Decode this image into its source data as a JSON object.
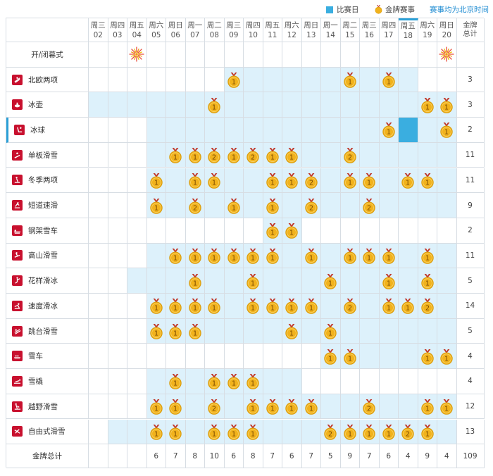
{
  "legend": {
    "competition_day": "比赛日",
    "medal_event": "金牌赛事",
    "note": "赛事均为北京时间"
  },
  "days": [
    {
      "weekday": "周三",
      "date": "02"
    },
    {
      "weekday": "周四",
      "date": "03"
    },
    {
      "weekday": "周五",
      "date": "04"
    },
    {
      "weekday": "周六",
      "date": "05"
    },
    {
      "weekday": "周日",
      "date": "06"
    },
    {
      "weekday": "周一",
      "date": "07"
    },
    {
      "weekday": "周二",
      "date": "08"
    },
    {
      "weekday": "周三",
      "date": "09"
    },
    {
      "weekday": "周四",
      "date": "10"
    },
    {
      "weekday": "周五",
      "date": "11"
    },
    {
      "weekday": "周六",
      "date": "12"
    },
    {
      "weekday": "周日",
      "date": "13"
    },
    {
      "weekday": "周一",
      "date": "14"
    },
    {
      "weekday": "周二",
      "date": "15"
    },
    {
      "weekday": "周三",
      "date": "16"
    },
    {
      "weekday": "周四",
      "date": "17"
    },
    {
      "weekday": "周五",
      "date": "18"
    },
    {
      "weekday": "周六",
      "date": "19"
    },
    {
      "weekday": "周日",
      "date": "20"
    }
  ],
  "highlighted_day_index": 16,
  "total_header": [
    "金牌",
    "总计"
  ],
  "ceremony": {
    "label": "开/闭幕式",
    "days": [
      2,
      18
    ]
  },
  "sports": [
    {
      "name": "北欧两项",
      "icon": "nordic-combined-icon",
      "comp": [
        7,
        8,
        9,
        10,
        11,
        12,
        13,
        14,
        15,
        16
      ],
      "medals": {
        "7": 1,
        "13": 1,
        "15": 1
      },
      "total": "3"
    },
    {
      "name": "冰壶",
      "icon": "curling-icon",
      "comp": [
        0,
        1,
        2,
        3,
        4,
        5,
        6,
        7,
        8,
        9,
        10,
        11,
        12,
        13,
        14,
        15,
        16,
        17,
        18
      ],
      "medals": {
        "6": 1,
        "17": 1,
        "18": 1
      },
      "total": "3"
    },
    {
      "name": "冰球",
      "icon": "ice-hockey-icon",
      "comp": [
        3,
        4,
        5,
        6,
        7,
        8,
        9,
        10,
        11,
        12,
        13,
        14,
        15,
        16,
        17,
        18
      ],
      "medals": {
        "15": 1,
        "18": 1
      },
      "total": "2",
      "selected": true
    },
    {
      "name": "单板滑雪",
      "icon": "snowboard-icon",
      "comp": [
        3,
        4,
        5,
        6,
        7,
        8,
        9,
        10,
        11,
        12,
        13,
        14,
        15,
        16,
        17,
        18
      ],
      "medals": {
        "4": 1,
        "5": 1,
        "6": 2,
        "7": 1,
        "8": 2,
        "9": 1,
        "10": 1,
        "13": 2
      },
      "total": "11"
    },
    {
      "name": "冬季两项",
      "icon": "biathlon-icon",
      "comp": [
        3,
        4,
        5,
        6,
        7,
        8,
        9,
        10,
        11,
        12,
        13,
        14,
        15,
        16,
        17,
        18
      ],
      "medals": {
        "3": 1,
        "5": 1,
        "6": 1,
        "9": 1,
        "10": 1,
        "11": 2,
        "13": 1,
        "14": 1,
        "16": 1,
        "17": 1
      },
      "total": "11"
    },
    {
      "name": "短道速滑",
      "icon": "short-track-icon",
      "comp": [
        3,
        4,
        5,
        6,
        7,
        8,
        9,
        10,
        11,
        12,
        13,
        14,
        15,
        16,
        17,
        18
      ],
      "medals": {
        "3": 1,
        "5": 2,
        "7": 1,
        "9": 1,
        "11": 2,
        "14": 2
      },
      "total": "9"
    },
    {
      "name": "钢架雪车",
      "icon": "skeleton-icon",
      "comp": [
        9,
        10
      ],
      "medals": {
        "9": 1,
        "10": 1
      },
      "total": "2"
    },
    {
      "name": "高山滑雪",
      "icon": "alpine-skiing-icon",
      "comp": [
        3,
        4,
        5,
        6,
        7,
        8,
        9,
        10,
        11,
        12,
        13,
        14,
        15,
        16,
        17,
        18
      ],
      "medals": {
        "4": 1,
        "5": 1,
        "6": 1,
        "7": 1,
        "8": 1,
        "9": 1,
        "11": 1,
        "13": 1,
        "14": 1,
        "15": 1,
        "17": 1
      },
      "total": "11"
    },
    {
      "name": "花样滑冰",
      "icon": "figure-skating-icon",
      "comp": [
        2,
        3,
        4,
        5,
        6,
        7,
        8,
        9,
        10,
        11,
        12,
        13,
        14,
        15,
        16,
        17,
        18
      ],
      "medals": {
        "5": 1,
        "8": 1,
        "12": 1,
        "15": 1,
        "17": 1
      },
      "total": "5"
    },
    {
      "name": "速度滑冰",
      "icon": "speed-skating-icon",
      "comp": [
        3,
        4,
        5,
        6,
        7,
        8,
        9,
        10,
        11,
        12,
        13,
        14,
        15,
        16,
        17,
        18
      ],
      "medals": {
        "3": 1,
        "4": 1,
        "5": 1,
        "6": 1,
        "8": 1,
        "9": 1,
        "10": 1,
        "11": 1,
        "13": 2,
        "15": 1,
        "16": 1,
        "17": 2
      },
      "total": "14"
    },
    {
      "name": "跳台滑雪",
      "icon": "ski-jumping-icon",
      "comp": [
        3,
        4,
        5,
        6,
        7,
        8,
        9,
        10,
        11,
        12,
        13,
        14,
        15,
        16,
        17,
        18
      ],
      "medals": {
        "3": 1,
        "4": 1,
        "5": 1,
        "10": 1,
        "12": 1
      },
      "total": "5"
    },
    {
      "name": "雪车",
      "icon": "bobsleigh-icon",
      "comp": [
        12,
        13,
        14,
        15,
        16,
        17,
        18
      ],
      "medals": {
        "12": 1,
        "13": 1,
        "17": 1,
        "18": 1
      },
      "total": "4"
    },
    {
      "name": "雪橇",
      "icon": "luge-icon",
      "comp": [
        3,
        4,
        5,
        6,
        7,
        8,
        9,
        10
      ],
      "medals": {
        "4": 1,
        "6": 1,
        "7": 1,
        "8": 1
      },
      "total": "4"
    },
    {
      "name": "越野滑雪",
      "icon": "cross-country-icon",
      "comp": [
        3,
        4,
        5,
        6,
        7,
        8,
        9,
        10,
        11,
        12,
        13,
        14,
        15,
        16,
        17,
        18
      ],
      "medals": {
        "3": 1,
        "4": 1,
        "6": 2,
        "8": 1,
        "9": 1,
        "10": 1,
        "11": 1,
        "14": 2,
        "17": 1,
        "18": 1
      },
      "total": "12"
    },
    {
      "name": "自由式滑雪",
      "icon": "freestyle-skiing-icon",
      "comp": [
        1,
        2,
        3,
        4,
        5,
        6,
        7,
        8,
        9,
        10,
        11,
        12,
        13,
        14,
        15,
        16,
        17,
        18
      ],
      "medals": {
        "3": 1,
        "4": 1,
        "6": 1,
        "7": 1,
        "8": 1,
        "12": 2,
        "13": 1,
        "14": 1,
        "15": 1,
        "16": 2,
        "17": 1
      },
      "total": "13"
    }
  ],
  "totals_row": {
    "label": "金牌总计",
    "values": [
      "",
      "",
      "",
      "6",
      "7",
      "8",
      "10",
      "6",
      "8",
      "7",
      "6",
      "7",
      "5",
      "9",
      "7",
      "6",
      "4",
      "9",
      "4"
    ],
    "grand_total": "109"
  },
  "colors": {
    "competition": "#ddf1fb",
    "highlight": "#3aaee0",
    "sport_icon": "#c8102e",
    "medal_gold": "#f1b21c",
    "grid_line": "#d7dde3",
    "note_text": "#1b8ad1"
  }
}
